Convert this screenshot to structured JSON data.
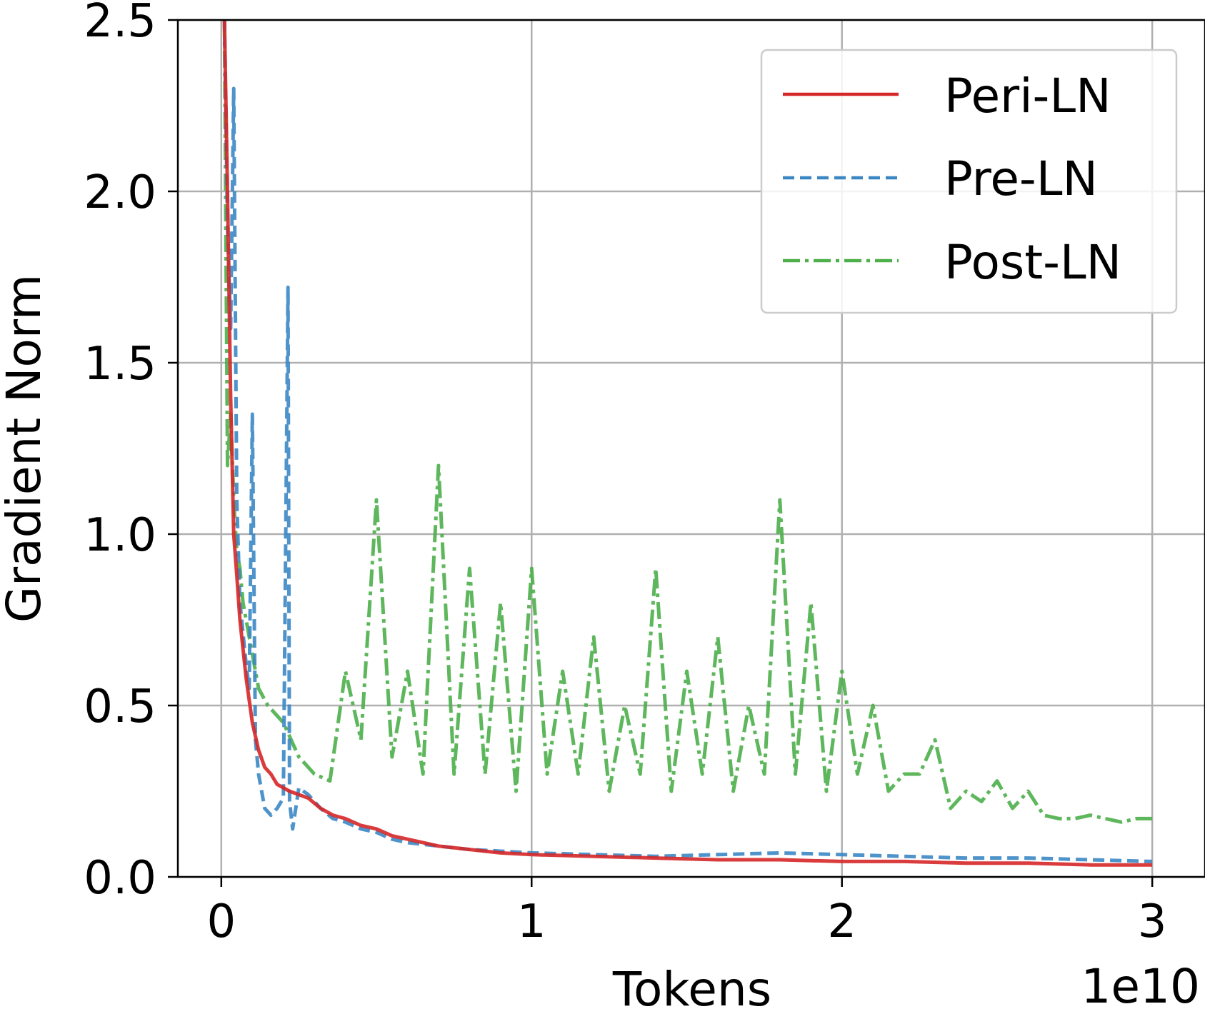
{
  "chart_data": {
    "type": "line",
    "xlabel": "Tokens",
    "ylabel": "Gradient Norm",
    "x_offset_text": "1e10",
    "xlim": [
      -0.14,
      3.17
    ],
    "ylim": [
      0.0,
      2.5
    ],
    "x_ticks": [
      {
        "value": 0,
        "label": "0"
      },
      {
        "value": 1,
        "label": "1"
      },
      {
        "value": 2,
        "label": "2"
      },
      {
        "value": 3,
        "label": "3"
      }
    ],
    "y_ticks": [
      {
        "value": 0.0,
        "label": "0.0"
      },
      {
        "value": 0.5,
        "label": "0.5"
      },
      {
        "value": 1.0,
        "label": "1.0"
      },
      {
        "value": 1.5,
        "label": "1.5"
      },
      {
        "value": 2.0,
        "label": "2.0"
      },
      {
        "value": 2.5,
        "label": "2.5"
      }
    ],
    "grid": true,
    "legend_position": "upper right",
    "series": [
      {
        "name": "Peri-LN",
        "color": "#d62728",
        "line_style": "solid",
        "x": [
          0.01,
          0.02,
          0.03,
          0.04,
          0.05,
          0.06,
          0.08,
          0.1,
          0.12,
          0.14,
          0.16,
          0.18,
          0.2,
          0.22,
          0.25,
          0.28,
          0.32,
          0.36,
          0.4,
          0.45,
          0.5,
          0.55,
          0.6,
          0.7,
          0.8,
          0.9,
          1.0,
          1.2,
          1.4,
          1.6,
          1.8,
          2.0,
          2.2,
          2.4,
          2.6,
          2.8,
          3.0
        ],
        "y": [
          2.5,
          2.0,
          1.4,
          1.0,
          0.88,
          0.75,
          0.58,
          0.45,
          0.37,
          0.32,
          0.3,
          0.27,
          0.26,
          0.25,
          0.24,
          0.23,
          0.2,
          0.18,
          0.17,
          0.15,
          0.14,
          0.12,
          0.11,
          0.09,
          0.08,
          0.07,
          0.065,
          0.06,
          0.055,
          0.05,
          0.05,
          0.045,
          0.045,
          0.04,
          0.04,
          0.035,
          0.035
        ]
      },
      {
        "name": "Pre-LN",
        "color": "#3b87c4",
        "line_style": "dashed",
        "x": [
          0.01,
          0.02,
          0.03,
          0.04,
          0.05,
          0.06,
          0.08,
          0.09,
          0.1,
          0.11,
          0.12,
          0.14,
          0.16,
          0.18,
          0.2,
          0.215,
          0.22,
          0.23,
          0.25,
          0.28,
          0.32,
          0.36,
          0.4,
          0.45,
          0.5,
          0.55,
          0.6,
          0.7,
          0.8,
          0.9,
          1.0,
          1.2,
          1.4,
          1.6,
          1.8,
          2.0,
          2.2,
          2.4,
          2.6,
          2.8,
          3.0
        ],
        "y": [
          2.5,
          1.9,
          1.6,
          2.3,
          1.1,
          0.8,
          0.62,
          0.55,
          1.35,
          0.4,
          0.3,
          0.2,
          0.18,
          0.2,
          0.23,
          1.72,
          0.22,
          0.14,
          0.26,
          0.24,
          0.2,
          0.17,
          0.16,
          0.14,
          0.13,
          0.11,
          0.1,
          0.09,
          0.08,
          0.075,
          0.07,
          0.065,
          0.06,
          0.065,
          0.07,
          0.065,
          0.06,
          0.055,
          0.055,
          0.05,
          0.045
        ]
      },
      {
        "name": "Post-LN",
        "color": "#4daf4a",
        "line_style": "dashdot",
        "x": [
          0.01,
          0.02,
          0.03,
          0.04,
          0.05,
          0.06,
          0.07,
          0.08,
          0.1,
          0.12,
          0.15,
          0.2,
          0.25,
          0.3,
          0.35,
          0.4,
          0.45,
          0.5,
          0.55,
          0.6,
          0.65,
          0.7,
          0.75,
          0.8,
          0.85,
          0.9,
          0.95,
          1.0,
          1.05,
          1.1,
          1.15,
          1.2,
          1.25,
          1.3,
          1.35,
          1.4,
          1.45,
          1.5,
          1.55,
          1.6,
          1.65,
          1.7,
          1.75,
          1.8,
          1.85,
          1.9,
          1.95,
          2.0,
          2.05,
          2.1,
          2.15,
          2.2,
          2.25,
          2.3,
          2.35,
          2.4,
          2.45,
          2.5,
          2.55,
          2.6,
          2.65,
          2.7,
          2.75,
          2.8,
          2.85,
          2.9,
          2.95,
          3.0
        ],
        "y": [
          2.5,
          1.2,
          1.35,
          1.1,
          0.95,
          0.9,
          0.8,
          0.75,
          0.65,
          0.55,
          0.5,
          0.45,
          0.35,
          0.3,
          0.28,
          0.6,
          0.4,
          1.1,
          0.35,
          0.6,
          0.3,
          1.2,
          0.3,
          0.9,
          0.3,
          0.8,
          0.25,
          0.9,
          0.3,
          0.6,
          0.3,
          0.7,
          0.25,
          0.5,
          0.3,
          0.9,
          0.25,
          0.6,
          0.3,
          0.7,
          0.25,
          0.5,
          0.3,
          1.1,
          0.3,
          0.8,
          0.25,
          0.6,
          0.3,
          0.5,
          0.25,
          0.3,
          0.3,
          0.4,
          0.2,
          0.25,
          0.22,
          0.28,
          0.2,
          0.25,
          0.18,
          0.17,
          0.17,
          0.18,
          0.17,
          0.16,
          0.17,
          0.17
        ]
      }
    ]
  }
}
